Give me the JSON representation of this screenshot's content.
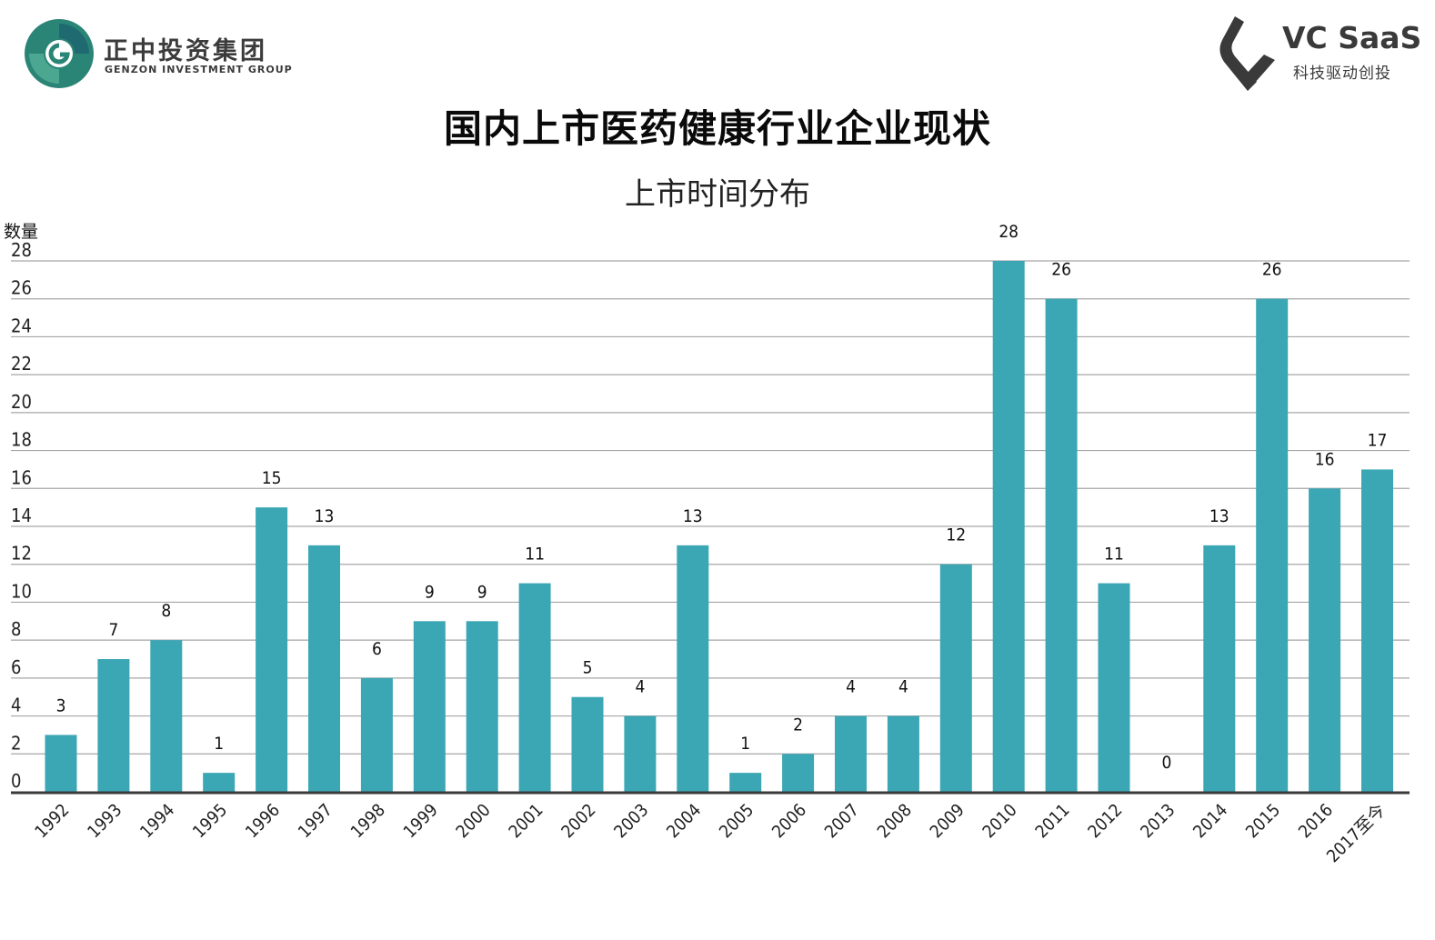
{
  "header": {
    "left_logo": {
      "cn": "正中投资集团",
      "en": "GENZON INVESTMENT GROUP",
      "icon": "genzon-logo-icon",
      "colors": [
        "#2e8a7a",
        "#1f6f73",
        "#4aa58f"
      ]
    },
    "right_logo": {
      "brand": "VC SaaS",
      "tagline": "科技驱动创投",
      "icon": "vc-saas-logo-icon",
      "color": "#3a3a3a"
    },
    "title": "国内上市医药健康行业企业现状"
  },
  "chart_data": {
    "type": "bar",
    "title": "上市时间分布",
    "ylabel": "数量",
    "xlabel": "",
    "ylim": [
      0,
      28
    ],
    "yticks": [
      0,
      2,
      4,
      6,
      8,
      10,
      12,
      14,
      16,
      18,
      20,
      22,
      24,
      26,
      28
    ],
    "grid": true,
    "bar_color": "#3ba6b4",
    "categories": [
      "1992",
      "1993",
      "1994",
      "1995",
      "1996",
      "1997",
      "1998",
      "1999",
      "2000",
      "2001",
      "2002",
      "2003",
      "2004",
      "2005",
      "2006",
      "2007",
      "2008",
      "2009",
      "2010",
      "2011",
      "2012",
      "2013",
      "2014",
      "2015",
      "2016",
      "2017至今"
    ],
    "values": [
      3,
      7,
      8,
      1,
      15,
      13,
      6,
      9,
      9,
      11,
      5,
      4,
      13,
      1,
      2,
      4,
      4,
      12,
      28,
      26,
      11,
      0,
      13,
      26,
      16,
      17
    ],
    "value_labels": [
      "3",
      "7",
      "8",
      "1",
      "15",
      "13",
      "6",
      "9",
      "9",
      "11",
      "5",
      "4",
      "13",
      "1",
      "2",
      "4",
      "4",
      "12",
      "28",
      "26",
      "11",
      "0",
      "13",
      "26",
      "16",
      "17"
    ]
  }
}
